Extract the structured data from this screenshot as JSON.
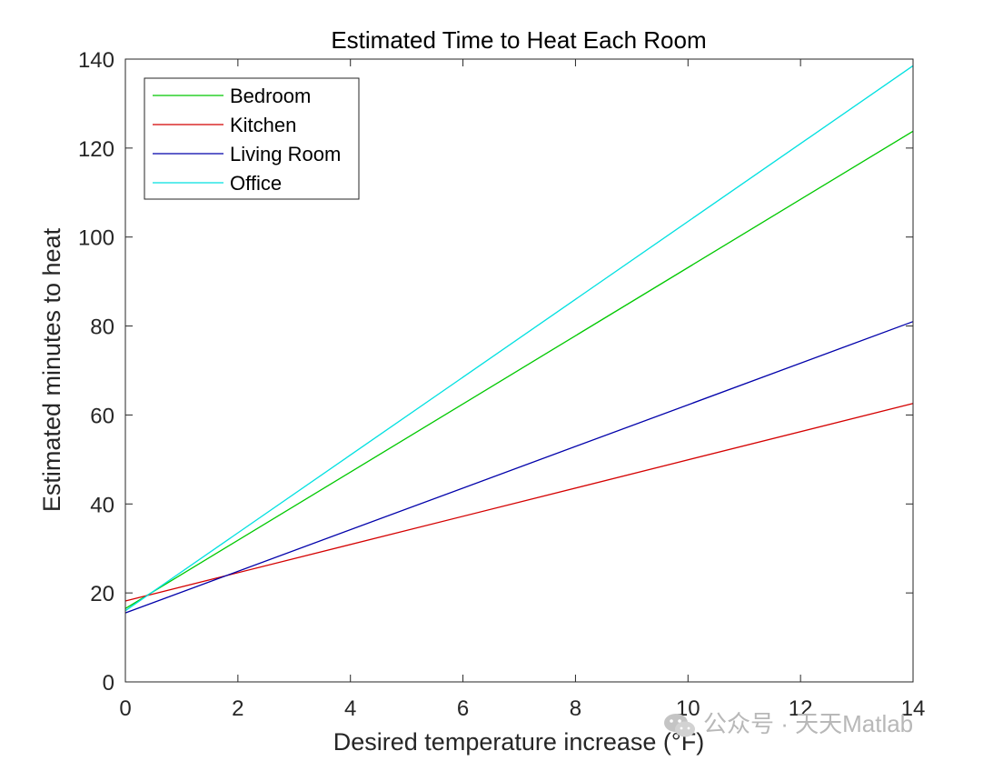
{
  "chart_data": {
    "type": "line",
    "title": "Estimated Time to Heat Each Room",
    "xlabel": "Desired temperature increase (°F)",
    "ylabel": "Estimated minutes to heat",
    "xlim": [
      0,
      14
    ],
    "ylim": [
      0,
      140
    ],
    "xticks": [
      0,
      2,
      4,
      6,
      8,
      10,
      12,
      14
    ],
    "yticks": [
      0,
      20,
      40,
      60,
      80,
      100,
      120,
      140
    ],
    "grid": false,
    "legend_position": "top-left",
    "series": [
      {
        "name": "Bedroom",
        "color": "#00c800",
        "x": [
          0,
          14
        ],
        "y": [
          16.5,
          123.8
        ]
      },
      {
        "name": "Kitchen",
        "color": "#d40000",
        "x": [
          0,
          14
        ],
        "y": [
          18.2,
          62.6
        ]
      },
      {
        "name": "Living Room",
        "color": "#0000aa",
        "x": [
          0,
          14
        ],
        "y": [
          15.5,
          81.0
        ]
      },
      {
        "name": "Office",
        "color": "#00e0e0",
        "x": [
          0,
          14
        ],
        "y": [
          16.0,
          138.5
        ]
      }
    ]
  },
  "watermark": {
    "text": "公众号 · 天天Matlab",
    "icon": "wechat-icon"
  }
}
